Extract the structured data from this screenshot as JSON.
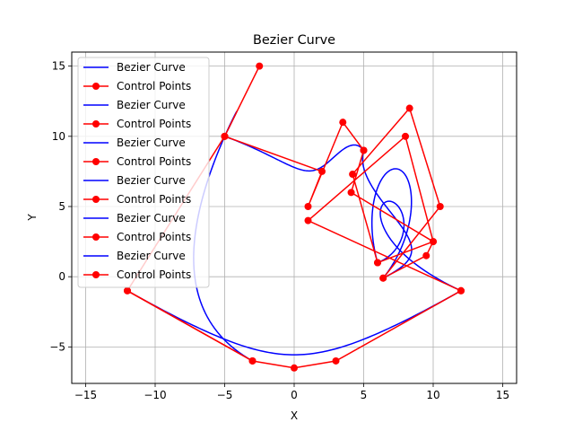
{
  "chart_data": {
    "type": "line",
    "title": "Bezier Curve",
    "xlabel": "X",
    "ylabel": "Y",
    "xlim": [
      -16,
      16
    ],
    "ylim": [
      -7.6,
      16
    ],
    "xticks": [
      -15,
      -10,
      -5,
      0,
      5,
      10,
      15
    ],
    "yticks": [
      -5,
      0,
      5,
      10,
      15
    ],
    "grid": true,
    "legend_position": "upper-left",
    "colors": {
      "curve": "#0000ff",
      "control": "#ff0000",
      "grid": "#b0b0b0"
    },
    "series": [
      {
        "name": "Bezier Curve",
        "kind": "curve",
        "control_points": [
          [
            -12,
            -1
          ],
          [
            -3,
            -6
          ],
          [
            0,
            -6.5
          ],
          [
            3,
            -6
          ],
          [
            12,
            -1
          ]
        ]
      },
      {
        "name": "Control Points",
        "kind": "control",
        "points": [
          [
            -12,
            -1
          ],
          [
            -3,
            -6
          ],
          [
            0,
            -6.5
          ],
          [
            3,
            -6
          ],
          [
            12,
            -1
          ]
        ]
      },
      {
        "name": "Bezier Curve",
        "kind": "curve",
        "control_points": [
          [
            12,
            -1
          ],
          [
            1,
            4
          ],
          [
            8,
            10
          ],
          [
            10,
            2.5
          ],
          [
            6,
            1
          ]
        ]
      },
      {
        "name": "Control Points",
        "kind": "control",
        "points": [
          [
            12,
            -1
          ],
          [
            1,
            4
          ],
          [
            8,
            10
          ],
          [
            10,
            2.5
          ],
          [
            6,
            1
          ]
        ]
      },
      {
        "name": "Bezier Curve",
        "kind": "curve",
        "control_points": [
          [
            6,
            1
          ],
          [
            4.2,
            7.3
          ],
          [
            8.3,
            12
          ],
          [
            10.5,
            5
          ],
          [
            6.4,
            -0.1
          ]
        ]
      },
      {
        "name": "Control Points",
        "kind": "control",
        "points": [
          [
            6,
            1
          ],
          [
            4.2,
            7.3
          ],
          [
            8.3,
            12
          ],
          [
            10.5,
            5
          ],
          [
            6.4,
            -0.1
          ]
        ]
      },
      {
        "name": "Bezier Curve",
        "kind": "curve",
        "control_points": [
          [
            6.4,
            -0.1
          ],
          [
            9.5,
            1.5
          ],
          [
            10,
            2.5
          ],
          [
            4.1,
            6
          ],
          [
            5,
            9
          ]
        ]
      },
      {
        "name": "Control Points",
        "kind": "control",
        "points": [
          [
            6.4,
            -0.1
          ],
          [
            9.5,
            1.5
          ],
          [
            10,
            2.5
          ],
          [
            4.1,
            6
          ],
          [
            5,
            9
          ]
        ]
      },
      {
        "name": "Bezier Curve",
        "kind": "curve",
        "control_points": [
          [
            5,
            9
          ],
          [
            3.5,
            11
          ],
          [
            1,
            5
          ],
          [
            2,
            7.5
          ],
          [
            -5,
            10
          ]
        ]
      },
      {
        "name": "Control Points",
        "kind": "control",
        "points": [
          [
            5,
            9
          ],
          [
            3.5,
            11
          ],
          [
            1,
            5
          ],
          [
            2,
            7.5
          ],
          [
            -5,
            10
          ]
        ]
      },
      {
        "name": "Bezier Curve",
        "kind": "curve",
        "control_points": [
          [
            -5,
            10
          ],
          [
            -2.5,
            15
          ],
          [
            -5,
            10
          ],
          [
            -12,
            -1
          ],
          [
            -3,
            -6
          ]
        ]
      },
      {
        "name": "Control Points",
        "kind": "control",
        "points": [
          [
            -5,
            10
          ],
          [
            -2.5,
            15
          ],
          [
            -5,
            10
          ],
          [
            -12,
            -1
          ],
          [
            -3,
            -6
          ]
        ]
      }
    ]
  }
}
